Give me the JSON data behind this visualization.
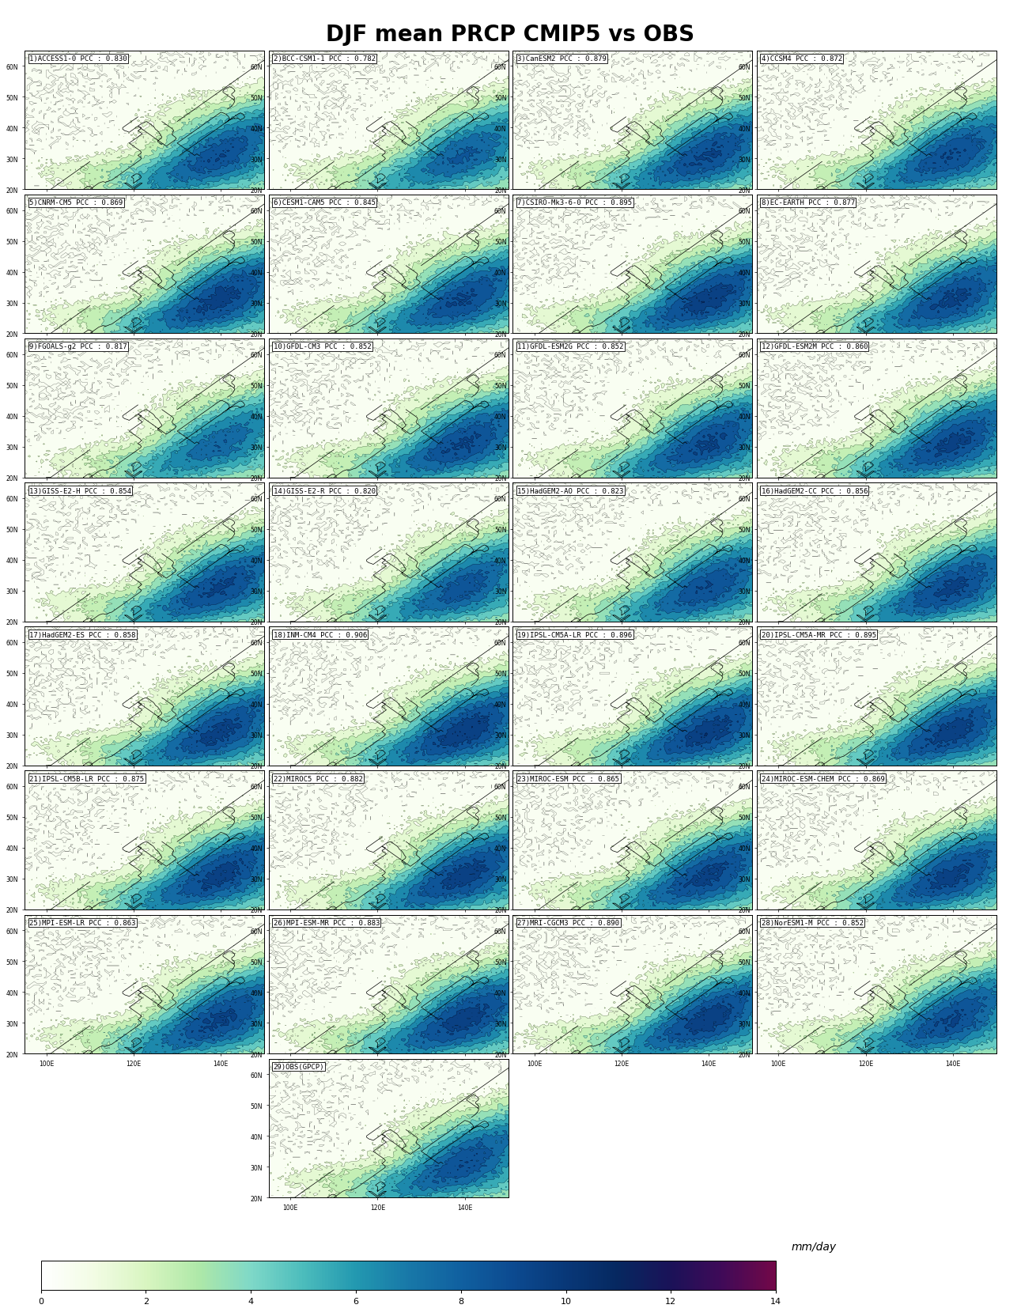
{
  "title": "DJF mean PRCP CMIP5 vs OBS",
  "title_fontsize": 20,
  "panels": [
    {
      "num": 1,
      "name": "ACCESS1-0",
      "pcc": "0.830"
    },
    {
      "num": 2,
      "name": "BCC-CSM1-1",
      "pcc": "0.782"
    },
    {
      "num": 3,
      "name": "CanESM2",
      "pcc": "0.879"
    },
    {
      "num": 4,
      "name": "CCSM4",
      "pcc": "0.872"
    },
    {
      "num": 5,
      "name": "CNRM-CM5",
      "pcc": "0.869"
    },
    {
      "num": 6,
      "name": "CESM1-CAM5",
      "pcc": "0.845"
    },
    {
      "num": 7,
      "name": "CSIRO-Mk3-6-0",
      "pcc": "0.895"
    },
    {
      "num": 8,
      "name": "EC-EARTH",
      "pcc": "0.877"
    },
    {
      "num": 9,
      "name": "FGOALS-g2",
      "pcc": "0.817"
    },
    {
      "num": 10,
      "name": "GFDL-CM3",
      "pcc": "0.852"
    },
    {
      "num": 11,
      "name": "GFDL-ESM2G",
      "pcc": "0.852"
    },
    {
      "num": 12,
      "name": "GFDL-ESM2M",
      "pcc": "0.860"
    },
    {
      "num": 13,
      "name": "GISS-E2-H",
      "pcc": "0.854"
    },
    {
      "num": 14,
      "name": "GISS-E2-R",
      "pcc": "0.820"
    },
    {
      "num": 15,
      "name": "HadGEM2-AO",
      "pcc": "0.823"
    },
    {
      "num": 16,
      "name": "HadGEM2-CC",
      "pcc": "0.856"
    },
    {
      "num": 17,
      "name": "HadGEM2-ES",
      "pcc": "0.858"
    },
    {
      "num": 18,
      "name": "INM-CM4",
      "pcc": "0.906"
    },
    {
      "num": 19,
      "name": "IPSL-CM5A-LR",
      "pcc": "0.896"
    },
    {
      "num": 20,
      "name": "IPSL-CM5A-MR",
      "pcc": "0.895"
    },
    {
      "num": 21,
      "name": "IPSL-CM5B-LR",
      "pcc": "0.875"
    },
    {
      "num": 22,
      "name": "MIROC5",
      "pcc": "0.882"
    },
    {
      "num": 23,
      "name": "MIROC-ESM",
      "pcc": "0.865"
    },
    {
      "num": 24,
      "name": "MIROC-ESM-CHEM",
      "pcc": "0.869"
    },
    {
      "num": 25,
      "name": "MPI-ESM-LR",
      "pcc": "0.863"
    },
    {
      "num": 26,
      "name": "MPI-ESM-MR",
      "pcc": "0.883"
    },
    {
      "num": 27,
      "name": "MRI-CGCM3",
      "pcc": "0.890"
    },
    {
      "num": 28,
      "name": "NorESM1-M",
      "pcc": "0.852"
    },
    {
      "num": 29,
      "name": "OBS(GPCP)",
      "pcc": null
    }
  ],
  "lon_min": 95,
  "lon_max": 150,
  "lat_min": 20,
  "lat_max": 65,
  "colorbar_ticks": [
    0,
    2,
    4,
    6,
    8,
    10,
    12,
    14
  ],
  "colorbar_label": "mm/day",
  "lon_ticks": [
    100,
    120,
    140
  ],
  "lat_ticks": [
    20,
    30,
    40,
    50,
    60
  ],
  "colormap_colors": [
    "#ffffff",
    "#f2fce4",
    "#d8f5c0",
    "#aee8a8",
    "#7ed8c8",
    "#4bbcbc",
    "#2298b0",
    "#1878a8",
    "#1060a0",
    "#0c4a90",
    "#083878",
    "#062860",
    "#1a1258",
    "#400a58",
    "#720848"
  ],
  "scales": [
    1.0,
    0.92,
    1.04,
    1.02,
    1.07,
    1.03,
    1.09,
    1.05,
    0.88,
    1.04,
    1.04,
    1.06,
    1.04,
    0.97,
    1.01,
    1.05,
    1.06,
    1.1,
    1.09,
    1.08,
    1.07,
    1.08,
    1.06,
    1.07,
    1.05,
    1.08,
    1.09,
    1.03,
    1.0
  ]
}
